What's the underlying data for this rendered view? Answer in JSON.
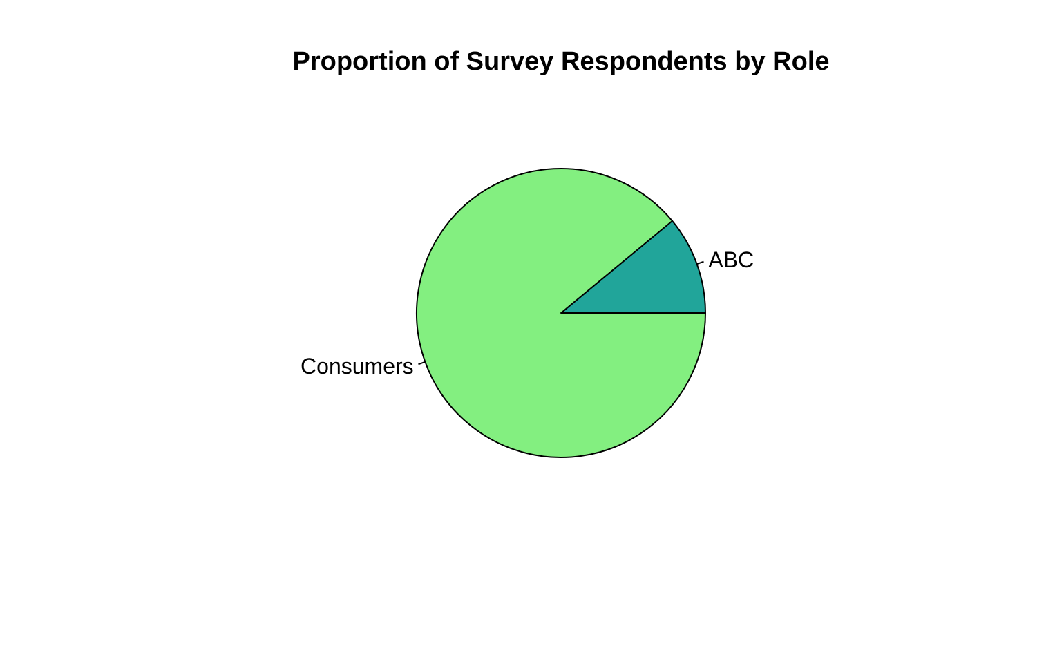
{
  "chart_data": {
    "type": "pie",
    "title": "Proportion of Survey Respondents by Role",
    "slices": [
      {
        "label": "ABC",
        "value": 11,
        "color": "#21A59A"
      },
      {
        "label": "Consumers",
        "value": 89,
        "color": "#83EF80"
      }
    ],
    "start_angle_deg": 0,
    "direction": "counterclockwise",
    "border_color": "#000000"
  }
}
